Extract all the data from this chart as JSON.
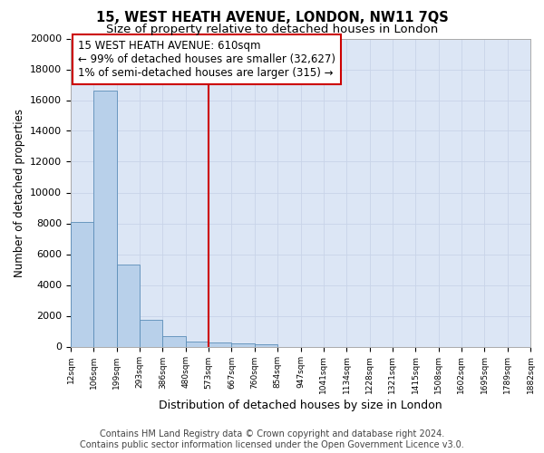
{
  "title1": "15, WEST HEATH AVENUE, LONDON, NW11 7QS",
  "title2": "Size of property relative to detached houses in London",
  "xlabel": "Distribution of detached houses by size in London",
  "ylabel": "Number of detached properties",
  "bar_values": [
    8100,
    16600,
    5300,
    1750,
    650,
    350,
    280,
    200,
    160,
    0,
    0,
    0,
    0,
    0,
    0,
    0,
    0,
    0,
    0,
    0
  ],
  "bin_labels": [
    "12sqm",
    "106sqm",
    "199sqm",
    "293sqm",
    "386sqm",
    "480sqm",
    "573sqm",
    "667sqm",
    "760sqm",
    "854sqm",
    "947sqm",
    "1041sqm",
    "1134sqm",
    "1228sqm",
    "1321sqm",
    "1415sqm",
    "1508sqm",
    "1602sqm",
    "1695sqm",
    "1789sqm",
    "1882sqm"
  ],
  "bar_color": "#b8d0ea",
  "bar_edge_color": "#5b8db8",
  "vline_color": "#cc0000",
  "vline_position": 5.5,
  "annotation_line1": "15 WEST HEATH AVENUE: 610sqm",
  "annotation_line2": "← 99% of detached houses are smaller (32,627)",
  "annotation_line3": "1% of semi-detached houses are larger (315) →",
  "annotation_box_edgecolor": "#cc0000",
  "ylim_max": 20000,
  "yticks": [
    0,
    2000,
    4000,
    6000,
    8000,
    10000,
    12000,
    14000,
    16000,
    18000,
    20000
  ],
  "grid_color": "#c8d4e8",
  "bg_color": "#dce6f5",
  "footer1": "Contains HM Land Registry data © Crown copyright and database right 2024.",
  "footer2": "Contains public sector information licensed under the Open Government Licence v3.0.",
  "title1_fontsize": 10.5,
  "title2_fontsize": 9.5,
  "ylabel_fontsize": 8.5,
  "xlabel_fontsize": 9,
  "footer_fontsize": 7,
  "annot_fontsize": 8.5
}
